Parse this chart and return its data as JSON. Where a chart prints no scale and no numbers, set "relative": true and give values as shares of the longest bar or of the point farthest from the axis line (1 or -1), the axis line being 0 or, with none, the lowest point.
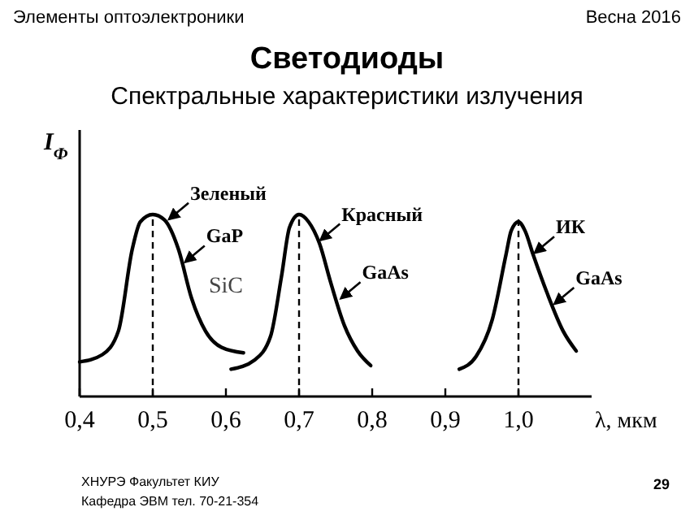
{
  "chart_data": {
    "type": "line",
    "title": "Светодиоды",
    "subtitle": "Спектральные характеристики излучения",
    "xlabel": "λ, мкм",
    "ylabel": "I$_{Ф}$",
    "relative": true,
    "xlim": [
      0.4,
      1.1
    ],
    "xticks": [
      {
        "value": 0.4,
        "label": "0,4"
      },
      {
        "value": 0.5,
        "label": "0,5"
      },
      {
        "value": 0.6,
        "label": "0,6"
      },
      {
        "value": 0.7,
        "label": "0,7"
      },
      {
        "value": 0.8,
        "label": "0,8"
      },
      {
        "value": 0.9,
        "label": "0,9"
      },
      {
        "value": 1.0,
        "label": "1,0"
      }
    ],
    "series": [
      {
        "color": "#000000",
        "x": [
          0.4,
          0.431,
          0.453,
          0.472,
          0.483,
          0.5,
          0.516,
          0.535,
          0.553,
          0.572,
          0.594,
          0.624
        ],
        "values": [
          0.19,
          0.23,
          0.36,
          0.81,
          0.96,
          1,
          0.97,
          0.81,
          0.54,
          0.36,
          0.27,
          0.24
        ]
      },
      {
        "color": "#000000",
        "x": [
          0.607,
          0.639,
          0.661,
          0.676,
          0.687,
          0.7,
          0.713,
          0.728,
          0.743,
          0.762,
          0.78,
          0.798
        ],
        "values": [
          0.15,
          0.2,
          0.33,
          0.66,
          0.93,
          1,
          0.96,
          0.84,
          0.63,
          0.39,
          0.25,
          0.17
        ]
      },
      {
        "color": "#000000",
        "x": [
          0.919,
          0.942,
          0.964,
          0.983,
          0.99,
          1.0,
          1.009,
          1.02,
          1.039,
          1.061,
          1.079
        ],
        "values": [
          0.15,
          0.22,
          0.42,
          0.78,
          0.91,
          0.96,
          0.91,
          0.78,
          0.57,
          0.36,
          0.25
        ]
      }
    ],
    "ref_lines": [
      {
        "axis": "x",
        "value": 0.5,
        "line_style": "dashed"
      },
      {
        "axis": "x",
        "value": 0.7,
        "line_style": "dashed"
      },
      {
        "axis": "x",
        "value": 1.0,
        "line_style": "dashed"
      }
    ],
    "grid": false,
    "marker": "none",
    "line_style": "solid",
    "annotations": [
      {
        "text": "Зеленый",
        "x": 0.52,
        "y": 0.965
      },
      {
        "text": "GaP",
        "x": 0.542,
        "y": 0.73
      },
      {
        "text": "Красный",
        "x": 0.727,
        "y": 0.85
      },
      {
        "text": "GaAs",
        "x": 0.755,
        "y": 0.53
      },
      {
        "text": "ИК",
        "x": 1.02,
        "y": 0.78
      },
      {
        "text": "GaAs",
        "x": 1.047,
        "y": 0.5
      },
      "Элементы оптоэлектроники",
      "Весна 2016",
      "ХНУРЭ Факультет КИУ",
      "Кафедра ЭВМ   тел. 70-21-354",
      "29",
      "SiC"
    ]
  }
}
